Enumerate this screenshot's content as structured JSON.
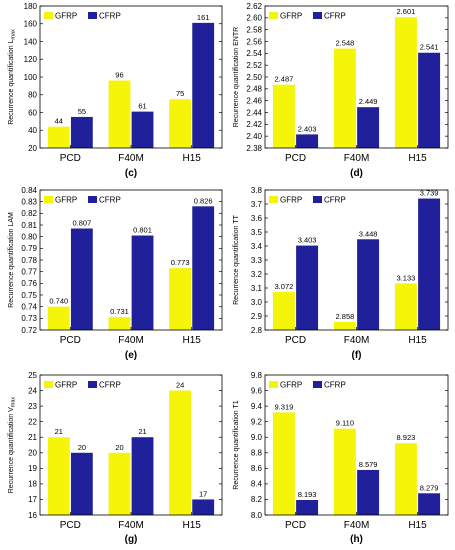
{
  "colors": {
    "GFRP": "#f5f50a",
    "CFRP": "#20209a",
    "frame": "#000000"
  },
  "chart_data": [
    {
      "type": "bar",
      "panel_label": "(c)",
      "categories": [
        "PCD",
        "F40M",
        "H15"
      ],
      "series": [
        {
          "name": "GFRP",
          "values": [
            44,
            96,
            75
          ],
          "labels": [
            "44",
            "96",
            "75"
          ]
        },
        {
          "name": "CFRP",
          "values": [
            55,
            61,
            161
          ],
          "labels": [
            "55",
            "61",
            "161"
          ]
        }
      ],
      "ylabel": "Recurrence quantification L",
      "ylabel_sub": "max",
      "ylim": [
        20,
        180
      ],
      "yticks": [
        20,
        40,
        60,
        80,
        100,
        120,
        140,
        160,
        180
      ],
      "ytick_labels": [
        "20",
        "40",
        "60",
        "80",
        "100",
        "120",
        "140",
        "160",
        "180"
      ],
      "legend": "top-left",
      "grid": false
    },
    {
      "type": "bar",
      "panel_label": "(d)",
      "categories": [
        "PCD",
        "F40M",
        "H15"
      ],
      "series": [
        {
          "name": "GFRP",
          "values": [
            2.487,
            2.548,
            2.601
          ],
          "labels": [
            "2.487",
            "2.548",
            "2.601"
          ]
        },
        {
          "name": "CFRP",
          "values": [
            2.403,
            2.449,
            2.541
          ],
          "labels": [
            "2.403",
            "2.449",
            "2.541"
          ]
        }
      ],
      "ylabel": "Recurrence quantification ENTR",
      "ylabel_sub": "",
      "ylim": [
        2.38,
        2.62
      ],
      "yticks": [
        2.38,
        2.4,
        2.42,
        2.44,
        2.46,
        2.48,
        2.5,
        2.52,
        2.54,
        2.56,
        2.58,
        2.6,
        2.62
      ],
      "ytick_labels": [
        "2.38",
        "2.40",
        "2.42",
        "2.44",
        "2.46",
        "2.48",
        "2.50",
        "2.52",
        "2.54",
        "2.56",
        "2.58",
        "2.60",
        "2.62"
      ],
      "legend": "top-left",
      "grid": false
    },
    {
      "type": "bar",
      "panel_label": "(e)",
      "categories": [
        "PCD",
        "F40M",
        "H15"
      ],
      "series": [
        {
          "name": "GFRP",
          "values": [
            0.74,
            0.731,
            0.773
          ],
          "labels": [
            "0.740",
            "0.731",
            "0.773"
          ]
        },
        {
          "name": "CFRP",
          "values": [
            0.807,
            0.801,
            0.826
          ],
          "labels": [
            "0.807",
            "0.801",
            "0.826"
          ]
        }
      ],
      "ylabel": "Recurrence quantification LAM",
      "ylabel_sub": "",
      "ylim": [
        0.72,
        0.84
      ],
      "yticks": [
        0.72,
        0.73,
        0.74,
        0.75,
        0.76,
        0.77,
        0.78,
        0.79,
        0.8,
        0.81,
        0.82,
        0.83,
        0.84
      ],
      "ytick_labels": [
        "0.72",
        "0.73",
        "0.74",
        "0.75",
        "0.76",
        "0.77",
        "0.78",
        "0.79",
        "0.80",
        "0.81",
        "0.82",
        "0.83",
        "0.84"
      ],
      "legend": "top-left",
      "grid": false
    },
    {
      "type": "bar",
      "panel_label": "(f)",
      "categories": [
        "PCD",
        "F40M",
        "H15"
      ],
      "series": [
        {
          "name": "GFRP",
          "values": [
            3.072,
            2.858,
            3.133
          ],
          "labels": [
            "3.072",
            "2.858",
            "3.133"
          ]
        },
        {
          "name": "CFRP",
          "values": [
            3.403,
            3.448,
            3.739
          ],
          "labels": [
            "3.403",
            "3.448",
            "3.739"
          ]
        }
      ],
      "ylabel": "Recurrence quantification TT",
      "ylabel_sub": "",
      "ylim": [
        2.8,
        3.8
      ],
      "yticks": [
        2.8,
        2.9,
        3.0,
        3.1,
        3.2,
        3.3,
        3.4,
        3.5,
        3.6,
        3.7,
        3.8
      ],
      "ytick_labels": [
        "2.8",
        "2.9",
        "3.0",
        "3.1",
        "3.2",
        "3.3",
        "3.4",
        "3.5",
        "3.6",
        "3.7",
        "3.8"
      ],
      "legend": "top-left",
      "grid": false
    },
    {
      "type": "bar",
      "panel_label": "(g)",
      "categories": [
        "PCD",
        "F40M",
        "H15"
      ],
      "series": [
        {
          "name": "GFRP",
          "values": [
            21,
            20,
            24
          ],
          "labels": [
            "21",
            "20",
            "24"
          ]
        },
        {
          "name": "CFRP",
          "values": [
            20,
            21,
            17
          ],
          "labels": [
            "20",
            "21",
            "17"
          ]
        }
      ],
      "ylabel": "Recurrence quantification V",
      "ylabel_sub": "max",
      "ylim": [
        16,
        25
      ],
      "yticks": [
        16,
        17,
        18,
        19,
        20,
        21,
        22,
        23,
        24,
        25
      ],
      "ytick_labels": [
        "16",
        "17",
        "18",
        "19",
        "20",
        "21",
        "22",
        "23",
        "24",
        "25"
      ],
      "legend": "top-left",
      "grid": false
    },
    {
      "type": "bar",
      "panel_label": "(h)",
      "categories": [
        "PCD",
        "F40M",
        "H15"
      ],
      "series": [
        {
          "name": "GFRP",
          "values": [
            9.319,
            9.11,
            8.923
          ],
          "labels": [
            "9.319",
            "9.110",
            "8.923"
          ]
        },
        {
          "name": "CFRP",
          "values": [
            8.193,
            8.579,
            8.279
          ],
          "labels": [
            "8.193",
            "8.579",
            "8.279"
          ]
        }
      ],
      "ylabel": "Recurrence quantification T1",
      "ylabel_sub": "",
      "ylim": [
        8.0,
        9.8
      ],
      "yticks": [
        8.0,
        8.2,
        8.4,
        8.6,
        8.8,
        9.0,
        9.2,
        9.4,
        9.6,
        9.8
      ],
      "ytick_labels": [
        "8.0",
        "8.2",
        "8.4",
        "8.6",
        "8.8",
        "9.0",
        "9.2",
        "9.4",
        "9.6",
        "9.8"
      ],
      "legend": "top-left",
      "grid": false
    }
  ]
}
